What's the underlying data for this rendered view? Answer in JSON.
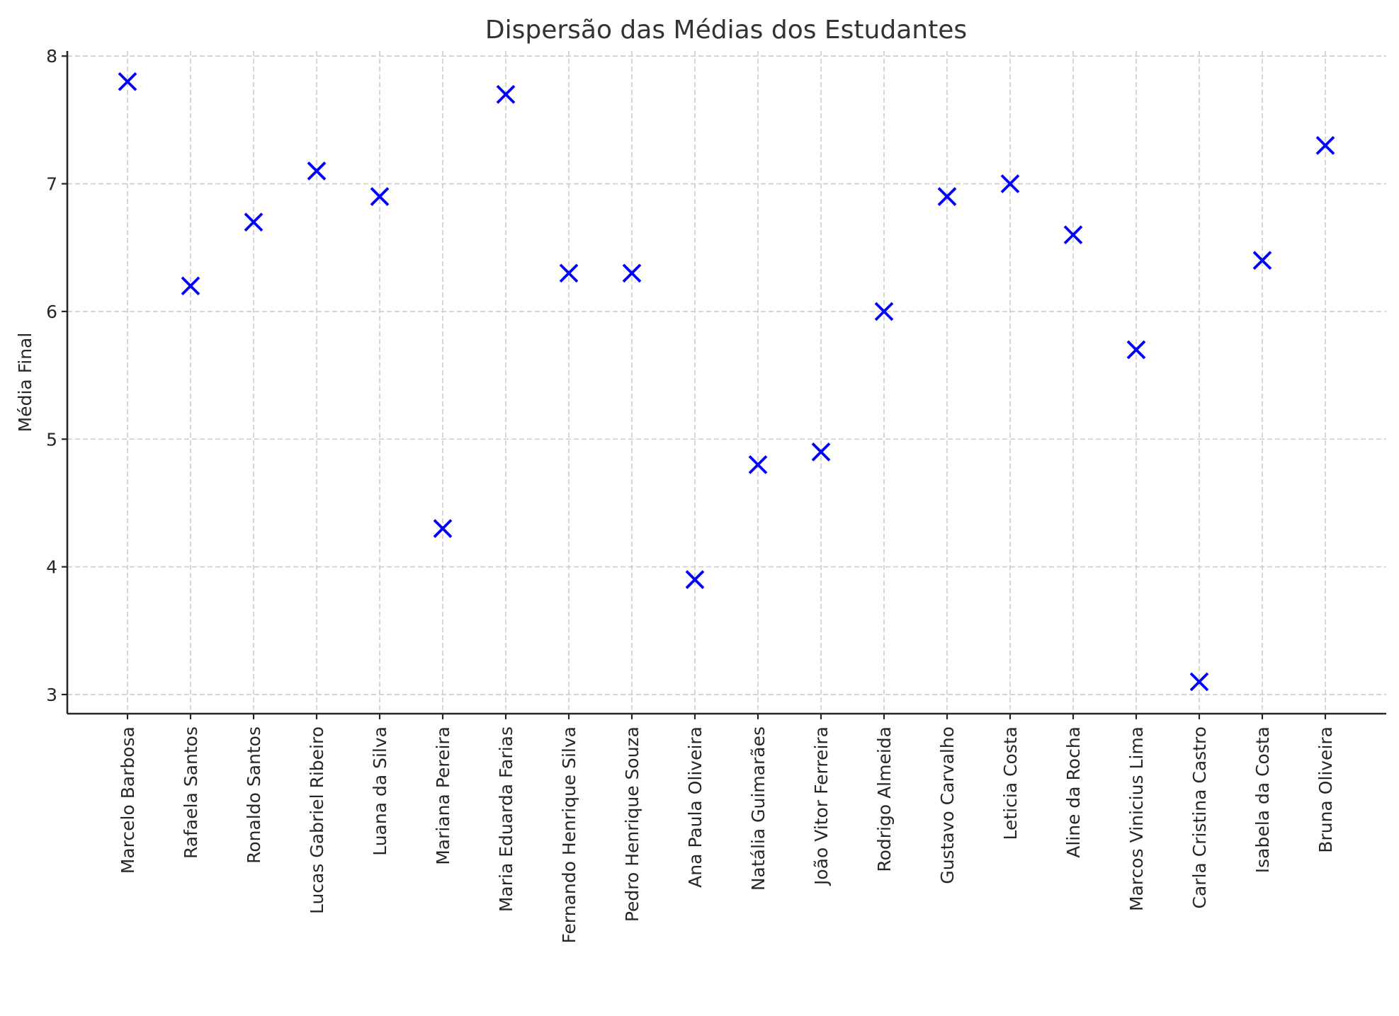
{
  "chart_data": {
    "type": "scatter",
    "title": "Dispersão das Médias dos Estudantes",
    "xlabel": "",
    "ylabel": "Média Final",
    "categories": [
      "Marcelo Barbosa",
      "Rafaela Santos",
      "Ronaldo Santos",
      "Lucas Gabriel Ribeiro",
      "Luana da Silva",
      "Mariana Pereira",
      "Maria Eduarda Farias",
      "Fernando Henrique Silva",
      "Pedro Henrique Souza",
      "Ana Paula Oliveira",
      "Natália Guimarães",
      "João Vitor Ferreira",
      "Rodrigo Almeida",
      "Gustavo Carvalho",
      "Leticia Costa",
      "Aline da Rocha",
      "Marcos Vinicius Lima",
      "Carla Cristina Castro",
      "Isabela da Costa",
      "Bruna Oliveira"
    ],
    "values": [
      7.8,
      6.2,
      6.7,
      7.1,
      6.9,
      4.3,
      7.7,
      6.3,
      6.3,
      3.9,
      4.8,
      4.9,
      6.0,
      6.9,
      7.0,
      6.6,
      5.7,
      3.1,
      6.4,
      7.3
    ],
    "yticks": [
      "3",
      "4",
      "5",
      "6",
      "7",
      "8"
    ],
    "ylim": [
      2.85,
      8.04
    ],
    "grid": true,
    "marker": "x",
    "color": "#0000ff"
  }
}
